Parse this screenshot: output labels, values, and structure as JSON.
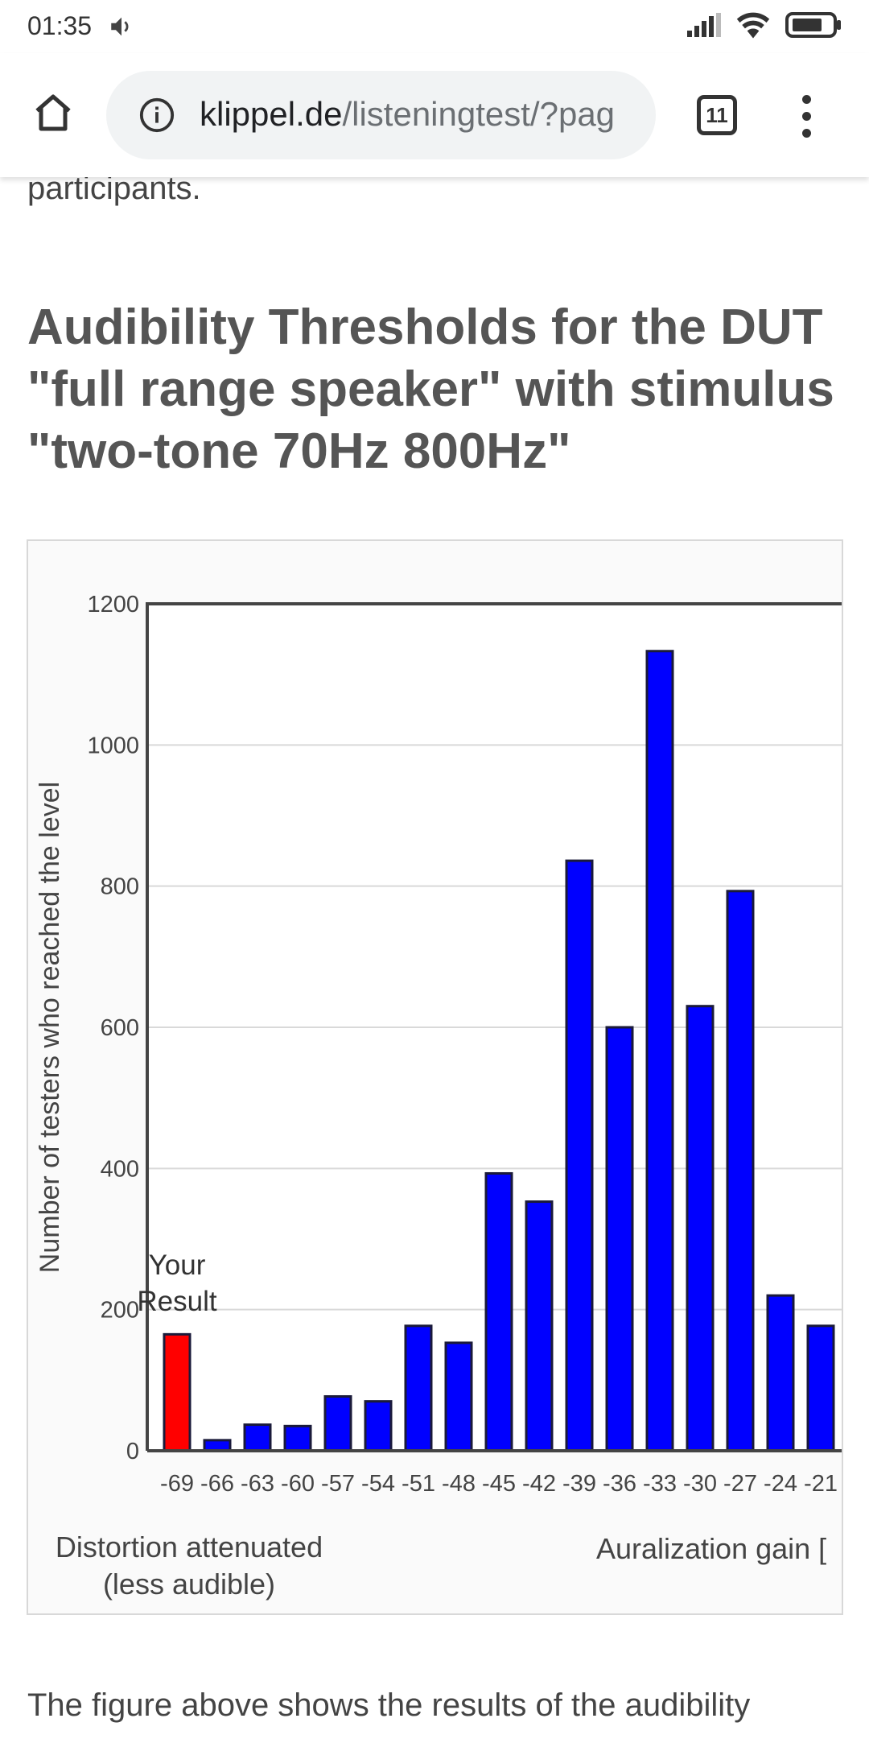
{
  "status_bar": {
    "time": "01:35",
    "sound_icon": "speaker-icon",
    "signal_icon": "signal-icon",
    "wifi_icon": "wifi-icon",
    "battery_icon": "battery-icon"
  },
  "browser": {
    "url_domain": "klippel.de",
    "url_path": "/listeningtest/?pag",
    "tab_count": "11",
    "home_icon": "home-icon",
    "info_icon": "info-icon",
    "menu_icon": "more-vert-icon"
  },
  "page": {
    "intro_tail": "participants.",
    "heading_lines": [
      "Audibility Thresholds for the DUT",
      "\"full range speaker\" with stimulus",
      "\"two-tone 70Hz 800Hz\""
    ],
    "footer_text": "The figure above shows the results of the audibility"
  },
  "chart_data": {
    "type": "bar",
    "title": "",
    "ylabel": "Number of testers who reached the level",
    "xlabel": "Auralization gain [",
    "x_note": "Distortion attenuated (less audible)",
    "x_note_lines": [
      "Distortion attenuated",
      "(less audible)"
    ],
    "ylim": [
      0,
      1200
    ],
    "yticks": [
      0,
      200,
      400,
      600,
      800,
      1000,
      1200
    ],
    "grid": true,
    "categories": [
      "-69",
      "-66",
      "-63",
      "-60",
      "-57",
      "-54",
      "-51",
      "-48",
      "-45",
      "-42",
      "-39",
      "-36",
      "-33",
      "-30",
      "-27",
      "-24",
      "-21"
    ],
    "values": [
      165,
      15,
      37,
      35,
      77,
      70,
      177,
      153,
      393,
      353,
      836,
      600,
      1133,
      630,
      793,
      220,
      177
    ],
    "highlight_index": 0,
    "highlight_label_lines": [
      "Your",
      "Result"
    ],
    "colors": {
      "bar": "#0000ff",
      "highlight": "#ff0000",
      "bar_stroke": "#1a1a3a",
      "grid": "#d9d9d9",
      "axis": "#444444"
    }
  }
}
